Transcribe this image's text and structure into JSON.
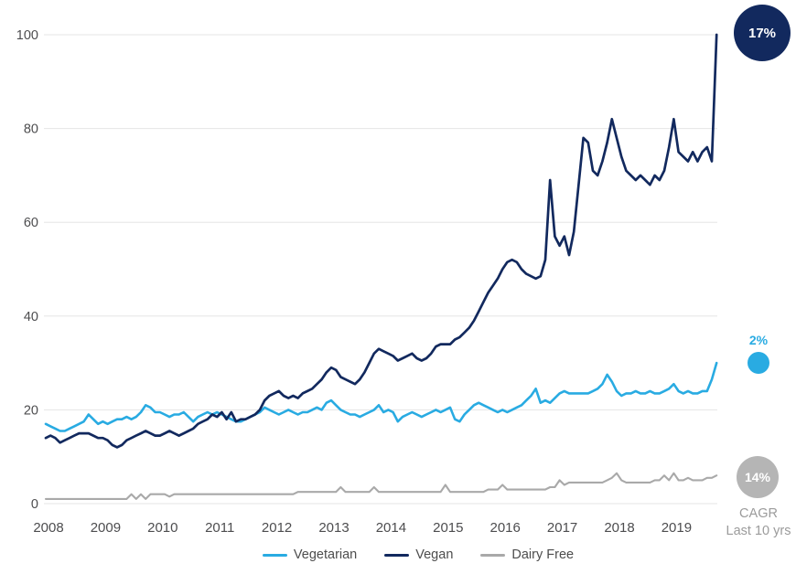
{
  "chart_data": {
    "type": "line",
    "title": "",
    "x_unit": "month",
    "x_range": "Jan 2008 - Oct 2019",
    "xticks": [
      "2008",
      "2009",
      "2010",
      "2011",
      "2012",
      "2013",
      "2014",
      "2015",
      "2016",
      "2017",
      "2018",
      "2019"
    ],
    "yticks": [
      0,
      20,
      40,
      60,
      80,
      100
    ],
    "ylim": [
      0,
      100
    ],
    "grid": "horizontal",
    "legend_position": "bottom",
    "series": [
      {
        "name": "Vegetarian",
        "color": "#29ABE2",
        "values": [
          17,
          16.5,
          16,
          15.5,
          15.5,
          16,
          16.5,
          17,
          17.5,
          19,
          18,
          17,
          17.5,
          17,
          17.5,
          18,
          18,
          18.5,
          18,
          18.5,
          19.5,
          21,
          20.5,
          19.5,
          19.5,
          19,
          18.5,
          19,
          19,
          19.5,
          18.5,
          17.5,
          18.5,
          19,
          19.5,
          19,
          19.5,
          19,
          18.5,
          18,
          17.5,
          17.5,
          18,
          18.5,
          19,
          19.5,
          20.5,
          20,
          19.5,
          19,
          19.5,
          20,
          19.5,
          19,
          19.5,
          19.5,
          20,
          20.5,
          20,
          21.5,
          22,
          21,
          20,
          19.5,
          19,
          19,
          18.5,
          19,
          19.5,
          20,
          21,
          19.5,
          20,
          19.5,
          17.5,
          18.5,
          19,
          19.5,
          19,
          18.5,
          19,
          19.5,
          20,
          19.5,
          20,
          20.5,
          18,
          17.5,
          19,
          20,
          21,
          21.5,
          21,
          20.5,
          20,
          19.5,
          20,
          19.5,
          20,
          20.5,
          21,
          22,
          23,
          24.5,
          21.5,
          22,
          21.5,
          22.5,
          23.5,
          24,
          23.5,
          23.5,
          23.5,
          23.5,
          23.5,
          24,
          24.5,
          25.5,
          27.5,
          26,
          24,
          23,
          23.5,
          23.5,
          24,
          23.5,
          23.5,
          24,
          23.5,
          23.5,
          24,
          24.5,
          25.5,
          24,
          23.5,
          24,
          23.5,
          23.5,
          24,
          24,
          26.5,
          30
        ]
      },
      {
        "name": "Vegan",
        "color": "#12295E",
        "values": [
          14,
          14.5,
          14,
          13,
          13.5,
          14,
          14.5,
          15,
          15,
          15,
          14.5,
          14,
          14,
          13.5,
          12.5,
          12,
          12.5,
          13.5,
          14,
          14.5,
          15,
          15.5,
          15,
          14.5,
          14.5,
          15,
          15.5,
          15,
          14.5,
          15,
          15.5,
          16,
          17,
          17.5,
          18,
          19,
          18.5,
          19.5,
          18,
          19.5,
          17.5,
          18,
          18,
          18.5,
          19,
          20,
          22,
          23,
          23.5,
          24,
          23,
          22.5,
          23,
          22.5,
          23.5,
          24,
          24.5,
          25.5,
          26.5,
          28,
          29,
          28.5,
          27,
          26.5,
          26,
          25.5,
          26.5,
          28,
          30,
          32,
          33,
          32.5,
          32,
          31.5,
          30.5,
          31,
          31.5,
          32,
          31,
          30.5,
          31,
          32,
          33.5,
          34,
          34,
          34,
          35,
          35.5,
          36.5,
          37.5,
          39,
          41,
          43,
          45,
          46.5,
          48,
          50,
          51.5,
          52,
          51.5,
          50,
          49,
          48.5,
          48,
          48.5,
          52,
          69,
          57,
          55,
          57,
          53,
          58,
          68,
          78,
          77,
          71,
          70,
          73,
          77,
          82,
          78,
          74,
          71,
          70,
          69,
          70,
          69,
          68,
          70,
          69,
          71,
          76,
          82,
          75,
          74,
          73,
          75,
          73,
          75,
          76,
          73,
          100
        ]
      },
      {
        "name": "Dairy Free",
        "color": "#A9A9A9",
        "values": [
          1,
          1,
          1,
          1,
          1,
          1,
          1,
          1,
          1,
          1,
          1,
          1,
          1,
          1,
          1,
          1,
          1,
          1,
          2,
          1,
          2,
          1,
          2,
          2,
          2,
          2,
          1.5,
          2,
          2,
          2,
          2,
          2,
          2,
          2,
          2,
          2,
          2,
          2,
          2,
          2,
          2,
          2,
          2,
          2,
          2,
          2,
          2,
          2,
          2,
          2,
          2,
          2,
          2,
          2.5,
          2.5,
          2.5,
          2.5,
          2.5,
          2.5,
          2.5,
          2.5,
          2.5,
          3.5,
          2.5,
          2.5,
          2.5,
          2.5,
          2.5,
          2.5,
          3.5,
          2.5,
          2.5,
          2.5,
          2.5,
          2.5,
          2.5,
          2.5,
          2.5,
          2.5,
          2.5,
          2.5,
          2.5,
          2.5,
          2.5,
          4,
          2.5,
          2.5,
          2.5,
          2.5,
          2.5,
          2.5,
          2.5,
          2.5,
          3,
          3,
          3,
          4,
          3,
          3,
          3,
          3,
          3,
          3,
          3,
          3,
          3,
          3.5,
          3.5,
          5,
          4,
          4.5,
          4.5,
          4.5,
          4.5,
          4.5,
          4.5,
          4.5,
          4.5,
          5,
          5.5,
          6.5,
          5,
          4.5,
          4.5,
          4.5,
          4.5,
          4.5,
          4.5,
          5,
          5,
          6,
          5,
          6.5,
          5,
          5,
          5.5,
          5,
          5,
          5,
          5.5,
          5.5,
          6
        ]
      }
    ],
    "annotations": {
      "cagr_label": "CAGR",
      "cagr_sublabel": "Last 10 yrs",
      "badges": [
        {
          "series": "Vegan",
          "value": "17%",
          "color": "#12295E",
          "text_style": "white-on-circle"
        },
        {
          "series": "Vegetarian",
          "value": "2%",
          "color": "#29ABE2",
          "text_style": "colored-above-dot"
        },
        {
          "series": "Dairy Free",
          "value": "14%",
          "color": "#B5B5B5",
          "text_style": "white-on-circle"
        }
      ]
    },
    "colors": {
      "background": "#ffffff",
      "gridline": "#e5e5e5",
      "axis_text": "#4d4d4f",
      "legend_text": "#4d4d4d",
      "cagr_text": "#9b9b9b"
    }
  }
}
